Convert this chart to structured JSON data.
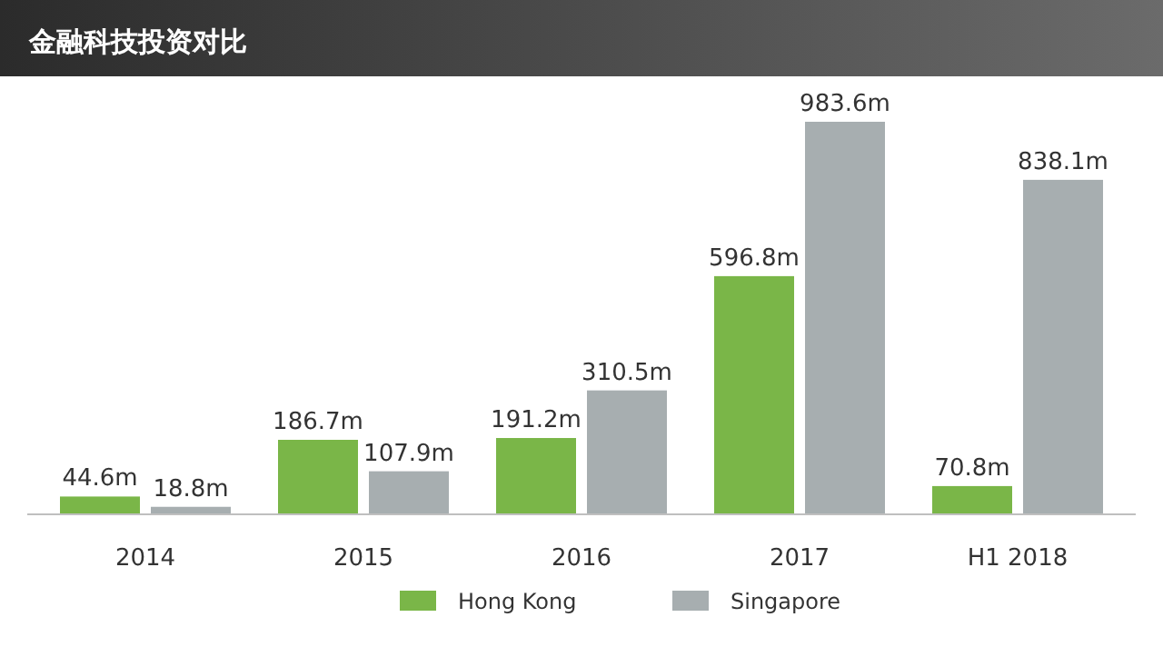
{
  "chart_data": {
    "type": "bar",
    "title": "金融科技投资对比",
    "categories": [
      "2014",
      "2015",
      "2016",
      "2017",
      "H1 2018"
    ],
    "series": [
      {
        "name": "Hong Kong",
        "color": "#7ab648",
        "values": [
          44.6,
          186.7,
          191.2,
          596.8,
          70.8
        ],
        "value_labels": [
          "44.6m",
          "186.7m",
          "191.2m",
          "596.8m",
          "70.8m"
        ]
      },
      {
        "name": "Singapore",
        "color": "#a7aeb0",
        "values": [
          18.8,
          107.9,
          310.5,
          983.6,
          838.1
        ],
        "value_labels": [
          "18.8m",
          "107.9m",
          "310.5m",
          "983.6m",
          "838.1m"
        ]
      }
    ],
    "legend": "bottom"
  }
}
